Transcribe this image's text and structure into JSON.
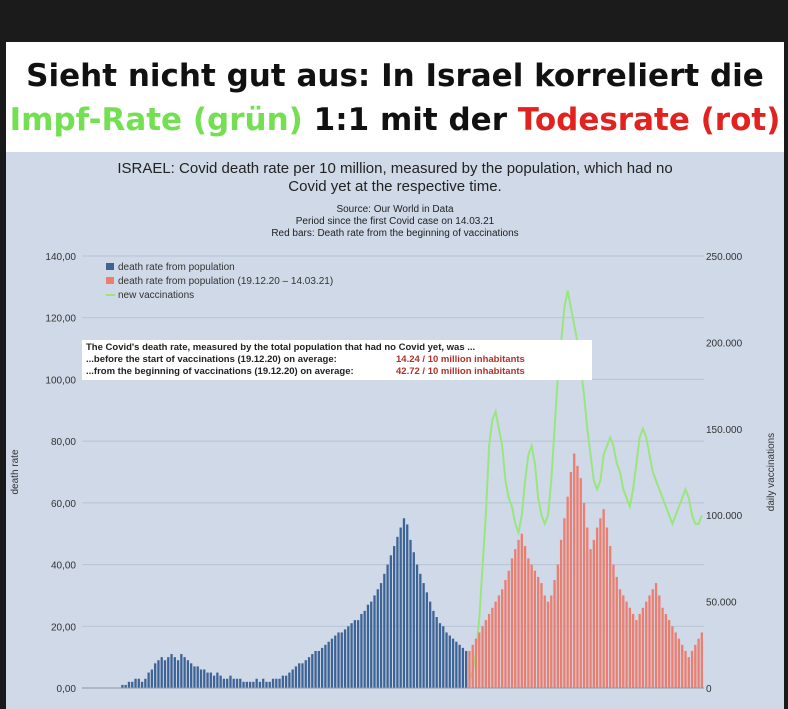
{
  "headline": {
    "line1": "Sieht nicht gut aus: In Israel korreliert die",
    "line2_green": "Impf-Rate (grün)",
    "line2_mid": " 1:1 mit der ",
    "line2_red": "Todesrate (rot)"
  },
  "colors": {
    "blue": "#3e6495",
    "red": "#ec7d6f",
    "green": "#9ae67e"
  },
  "chart_data": {
    "type": "bar",
    "title_line1": "ISRAEL: Covid death rate per 10 million, measured by the population, which had no",
    "title_line2": "Covid yet at the respective time.",
    "subtitle_line1": "Source: Our World in Data",
    "subtitle_line2": "Period since the first Covid case on 14.03.21",
    "subtitle_line3": "Red bars: Death rate from the beginning of vaccinations",
    "ylabel": "death rate",
    "y2label": "daily vaccinations",
    "ylim": [
      0,
      140
    ],
    "y2lim": [
      0,
      250000
    ],
    "yticks": [
      "0,00",
      "20,00",
      "40,00",
      "60,00",
      "80,00",
      "100,00",
      "120,00",
      "140,00"
    ],
    "y2ticks": [
      "0",
      "50.000",
      "100.000",
      "150.000",
      "200.000",
      "250.000"
    ],
    "legend_placement": "top-left",
    "legend": [
      "death rate from population",
      "death rate from population (19.12.20 – 14.03.21)",
      "new vaccinations"
    ],
    "annotation": {
      "line1": "The Covid's death rate, measured by the total population that had no Covid yet, was ...",
      "line2": "...before the start of vaccinations (19.12.20) on average:",
      "line2_value": "14.24 / 10 million inhabitants",
      "line3": "...from the beginning of vaccinations (19.12.20) on average:",
      "line3_value": "42.72 / 10 million inhabitants"
    },
    "series": [
      {
        "name": "death rate from population",
        "axis": "left",
        "values": [
          0,
          0,
          0,
          0,
          0,
          0,
          0,
          0,
          0,
          0,
          0,
          0,
          1,
          1,
          2,
          2,
          3,
          3,
          2,
          3,
          5,
          6,
          8,
          9,
          10,
          9,
          10,
          11,
          10,
          9,
          11,
          10,
          9,
          8,
          7,
          7,
          6,
          6,
          5,
          5,
          4,
          5,
          4,
          3,
          3,
          4,
          3,
          3,
          3,
          2,
          2,
          2,
          2,
          3,
          2,
          3,
          2,
          2,
          3,
          3,
          3,
          4,
          4,
          5,
          6,
          7,
          8,
          8,
          9,
          10,
          11,
          12,
          12,
          13,
          14,
          15,
          16,
          17,
          18,
          18,
          19,
          20,
          21,
          22,
          22,
          24,
          25,
          27,
          28,
          30,
          32,
          34,
          37,
          40,
          43,
          46,
          49,
          52,
          55,
          53,
          48,
          44,
          40,
          37,
          34,
          31,
          28,
          25,
          23,
          21,
          20,
          18,
          17,
          16,
          15,
          14,
          13,
          12
        ]
      },
      {
        "name": "death rate from population (19.12.20 – 14.03.21)",
        "axis": "left",
        "values": [
          12,
          14,
          16,
          18,
          20,
          22,
          24,
          26,
          28,
          30,
          32,
          35,
          38,
          42,
          45,
          48,
          50,
          46,
          42,
          40,
          38,
          36,
          34,
          30,
          28,
          30,
          35,
          40,
          48,
          55,
          62,
          70,
          76,
          72,
          68,
          60,
          52,
          45,
          48,
          52,
          55,
          58,
          52,
          46,
          40,
          36,
          32,
          30,
          28,
          26,
          24,
          22,
          24,
          26,
          28,
          30,
          32,
          34,
          30,
          26,
          24,
          22,
          20,
          18,
          16,
          14,
          12,
          10,
          12,
          14,
          16,
          18
        ]
      },
      {
        "name": "new vaccinations",
        "axis": "right",
        "values": [
          5000,
          10000,
          20000,
          40000,
          70000,
          100000,
          140000,
          155000,
          160000,
          150000,
          140000,
          120000,
          110000,
          105000,
          95000,
          90000,
          100000,
          120000,
          135000,
          140000,
          130000,
          110000,
          100000,
          95000,
          100000,
          120000,
          150000,
          180000,
          200000,
          220000,
          230000,
          220000,
          210000,
          200000,
          185000,
          170000,
          150000,
          135000,
          120000,
          115000,
          120000,
          135000,
          140000,
          145000,
          140000,
          130000,
          125000,
          115000,
          110000,
          105000,
          115000,
          130000,
          145000,
          150000,
          145000,
          135000,
          125000,
          120000,
          115000,
          110000,
          105000,
          100000,
          95000,
          100000,
          105000,
          110000,
          115000,
          110000,
          100000,
          95000,
          95000,
          100000
        ]
      }
    ]
  }
}
